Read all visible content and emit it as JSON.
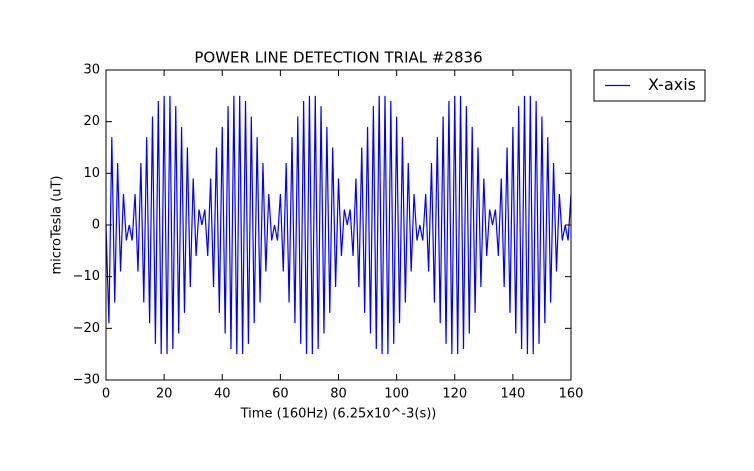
{
  "chart_data": {
    "type": "line",
    "title": "POWER LINE DETECTION TRIAL #2836",
    "x_label": "Time (160Hz) (6.25x10^-3(s))",
    "y_label": "microTesla (uT)",
    "x": [
      0,
      1,
      2,
      3,
      4,
      5,
      6,
      7,
      8,
      9,
      10,
      11,
      12,
      13,
      14,
      15,
      16,
      17,
      18,
      19,
      20,
      21,
      22,
      23,
      24,
      25,
      26,
      27,
      28,
      29,
      30,
      31,
      32,
      33,
      34,
      35,
      36,
      37,
      38,
      39,
      40,
      41,
      42,
      43,
      44,
      45,
      46,
      47,
      48,
      49,
      50,
      51,
      52,
      53,
      54,
      55,
      56,
      57,
      58,
      59,
      60,
      61,
      62,
      63,
      64,
      65,
      66,
      67,
      68,
      69,
      70,
      71,
      72,
      73,
      74,
      75,
      76,
      77,
      78,
      79,
      80,
      81,
      82,
      83,
      84,
      85,
      86,
      87,
      88,
      89,
      90,
      91,
      92,
      93,
      94,
      95,
      96,
      97,
      98,
      99,
      100,
      101,
      102,
      103,
      104,
      105,
      106,
      107,
      108,
      109,
      110,
      111,
      112,
      113,
      114,
      115,
      116,
      117,
      118,
      119,
      120,
      121,
      122,
      123,
      124,
      125,
      126,
      127,
      128,
      129,
      130,
      131,
      132,
      133,
      134,
      135,
      136,
      137,
      138,
      139,
      140,
      141,
      142,
      143,
      144,
      145,
      146,
      147,
      148,
      149,
      150,
      151,
      152,
      153,
      154,
      155,
      156,
      157,
      158,
      159,
      160
    ],
    "series": [
      {
        "name": "X-axis",
        "color": "#0000ff",
        "values": [
          0,
          -19,
          17,
          -15,
          12,
          -9,
          6,
          -3,
          0,
          -3,
          6,
          -9,
          12,
          -15,
          17,
          -19,
          21,
          -23,
          24,
          -25,
          25,
          -25,
          25,
          -24,
          23,
          -21,
          19,
          -17,
          15,
          -12,
          9,
          -6,
          3,
          0,
          3,
          -6,
          9,
          -12,
          15,
          -17,
          19,
          -21,
          23,
          -24,
          25,
          -25,
          25,
          -25,
          24,
          -23,
          21,
          -19,
          17,
          -15,
          12,
          -9,
          6,
          -3,
          0,
          -3,
          6,
          -9,
          12,
          -15,
          17,
          -19,
          21,
          -23,
          24,
          -25,
          25,
          -25,
          25,
          -24,
          23,
          -21,
          19,
          -17,
          15,
          -12,
          9,
          -6,
          3,
          0,
          3,
          -6,
          9,
          -12,
          15,
          -17,
          19,
          -21,
          23,
          -24,
          25,
          -25,
          25,
          -25,
          24,
          -23,
          21,
          -19,
          17,
          -15,
          12,
          -9,
          6,
          -3,
          0,
          -3,
          6,
          -9,
          12,
          -15,
          17,
          -19,
          21,
          -23,
          24,
          -25,
          25,
          -25,
          25,
          -24,
          23,
          -21,
          19,
          -17,
          15,
          -12,
          9,
          -6,
          3,
          0,
          3,
          -6,
          9,
          -12,
          15,
          -17,
          19,
          -21,
          23,
          -24,
          25,
          -25,
          25,
          -25,
          24,
          -23,
          21,
          -19,
          17,
          -15,
          12,
          -9,
          6,
          -3,
          0,
          -3,
          6
        ]
      }
    ],
    "xlim": [
      0,
      160
    ],
    "xticks": [
      0,
      20,
      40,
      60,
      80,
      100,
      120,
      140,
      160
    ],
    "ylim": [
      -30,
      30
    ],
    "yticks": [
      {
        "value": -30,
        "label": "−30"
      },
      {
        "value": -20,
        "label": "−20"
      },
      {
        "value": -10,
        "label": "−10"
      },
      0,
      10,
      20,
      30
    ],
    "legend": "outside-upper-right",
    "grid": false
  }
}
